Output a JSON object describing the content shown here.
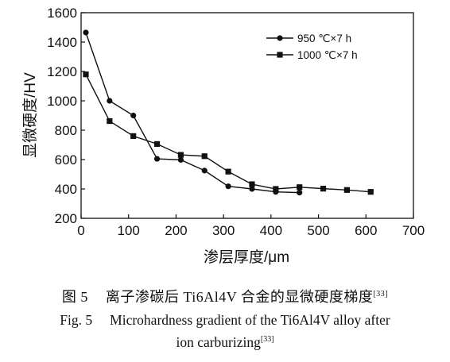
{
  "chart_data": {
    "type": "line",
    "x": [],
    "xlabel": "渗层厚度/μm",
    "ylabel": "显微硬度/HV",
    "xlim": [
      0,
      700
    ],
    "ylim": [
      200,
      1600
    ],
    "xticks": [
      "0",
      "100",
      "200",
      "300",
      "400",
      "500",
      "600",
      "700"
    ],
    "yticks": [
      "200",
      "400",
      "600",
      "800",
      "1000",
      "1200",
      "1400",
      "1600"
    ],
    "grid": false,
    "legend_position": "top-right",
    "series": [
      {
        "name": "950 ℃×7 h",
        "marker": "circle",
        "points": [
          [
            10,
            1465
          ],
          [
            60,
            1000
          ],
          [
            110,
            900
          ],
          [
            160,
            605
          ],
          [
            210,
            598
          ],
          [
            260,
            525
          ],
          [
            310,
            418
          ],
          [
            360,
            400
          ],
          [
            410,
            380
          ],
          [
            460,
            375
          ]
        ]
      },
      {
        "name": "1000 ℃×7 h",
        "marker": "square",
        "points": [
          [
            10,
            1180
          ],
          [
            60,
            862
          ],
          [
            110,
            760
          ],
          [
            160,
            706
          ],
          [
            210,
            632
          ],
          [
            260,
            623
          ],
          [
            310,
            518
          ],
          [
            360,
            432
          ],
          [
            410,
            400
          ],
          [
            460,
            412
          ],
          [
            510,
            402
          ],
          [
            560,
            393
          ],
          [
            610,
            380
          ]
        ]
      }
    ]
  },
  "caption": {
    "cn_label": "图 5",
    "cn_text": "离子渗碳后 Ti6Al4V 合金的显微硬度梯度",
    "en_label": "Fig. 5",
    "en_text_1": "Microhardness gradient of the Ti6Al4V alloy after",
    "en_text_2": "ion carburizing",
    "ref": "[33]"
  }
}
